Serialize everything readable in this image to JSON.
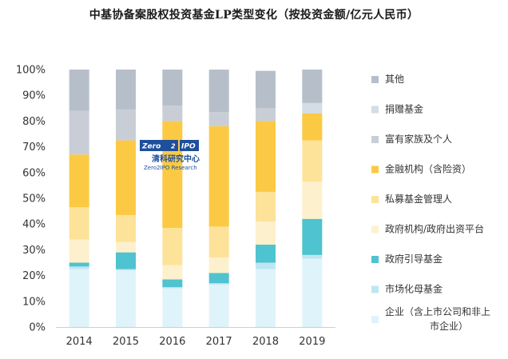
{
  "title": "中基协备案股权投资基金LP类型变化（按投资金额/亿元人民币）",
  "watermark": {
    "logo_left": "Zero",
    "logo_right": "IPO",
    "name_cn": "清科研究中心",
    "name_en": "Zero2IPO Research"
  },
  "chart_data": {
    "type": "bar",
    "stacked": true,
    "categories": [
      "2014",
      "2015",
      "2016",
      "2017",
      "2018",
      "2019"
    ],
    "yticks": [
      "0%",
      "10%",
      "20%",
      "30%",
      "40%",
      "50%",
      "60%",
      "70%",
      "80%",
      "90%",
      "100%"
    ],
    "ylim": [
      0,
      100
    ],
    "grid": false,
    "legend_position": "right",
    "series": [
      {
        "name": "企业（含上市公司和非上市企业）",
        "color": "#dff3fa",
        "values": [
          22.5,
          22,
          15,
          16.5,
          22.5,
          26.5
        ]
      },
      {
        "name": "市场化母基金",
        "color": "#bfe6f2",
        "values": [
          1,
          0.5,
          0.5,
          0.5,
          2.5,
          1.5
        ]
      },
      {
        "name": "政府引导基金",
        "color": "#4fc3cf",
        "values": [
          1.5,
          6.5,
          3,
          4,
          7,
          14
        ]
      },
      {
        "name": "政府机构/政府出资平台",
        "color": "#fdf0cc",
        "values": [
          9,
          4,
          5.5,
          6,
          9,
          14.5
        ]
      },
      {
        "name": "私募基金管理人",
        "color": "#fde29a",
        "values": [
          12.5,
          10.5,
          14.5,
          12,
          11.5,
          16
        ]
      },
      {
        "name": "金融机构（含险资）",
        "color": "#fbc944",
        "values": [
          20.5,
          29,
          41.5,
          39,
          27.5,
          10.5
        ]
      },
      {
        "name": "富有家族及个人",
        "color": "#c9ced6",
        "values": [
          17,
          12,
          6,
          5.5,
          5,
          0
        ]
      },
      {
        "name": "捐赠基金",
        "color": "#d2dde6",
        "values": [
          0,
          0,
          0,
          0,
          0,
          4
        ]
      },
      {
        "name": "其他",
        "color": "#b6bfc9",
        "values": [
          16,
          15.5,
          14,
          16.5,
          14.5,
          13
        ]
      }
    ]
  }
}
